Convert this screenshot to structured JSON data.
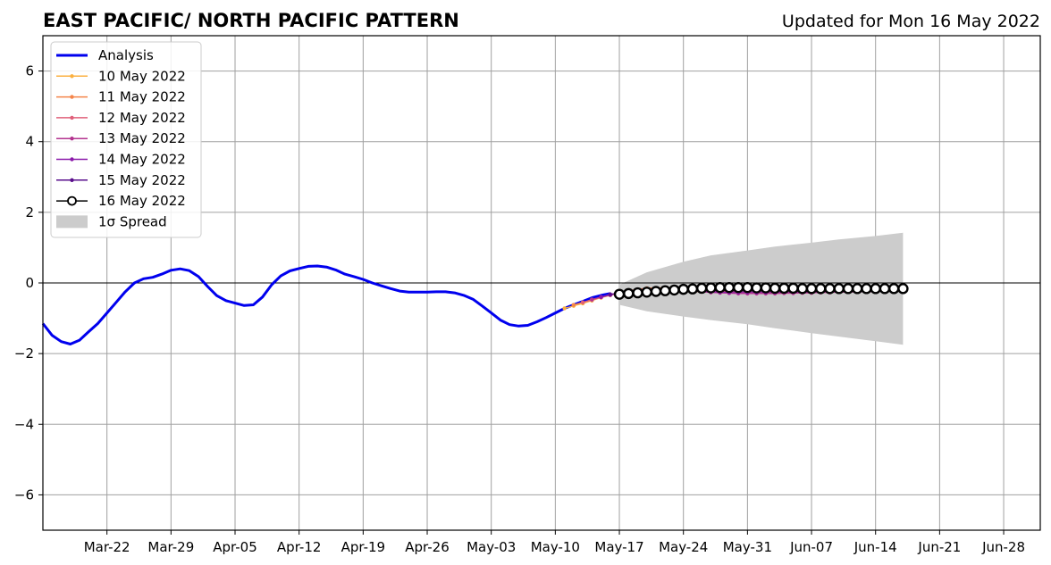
{
  "chart_data": {
    "type": "line",
    "title": "EAST PACIFIC/ NORTH PACIFIC PATTERN",
    "subtitle": "Updated for Mon 16 May 2022",
    "xlabel": "",
    "ylabel": "",
    "xlim": [
      "2022-03-15",
      "2022-07-02"
    ],
    "ylim": [
      -7,
      7
    ],
    "grid": true,
    "legend_position": "top-left",
    "x_ticks": [
      "Mar-22",
      "Mar-29",
      "Apr-05",
      "Apr-12",
      "Apr-19",
      "Apr-26",
      "May-03",
      "May-10",
      "May-17",
      "May-24",
      "May-31",
      "Jun-07",
      "Jun-14",
      "Jun-21",
      "Jun-28"
    ],
    "y_ticks": [
      "6",
      "4",
      "2",
      "0",
      "−2",
      "−4",
      "−6"
    ],
    "series": [
      {
        "name": "Analysis",
        "color": "#0000ee",
        "x": [
          "2022-03-15",
          "2022-03-16",
          "2022-03-17",
          "2022-03-18",
          "2022-03-19",
          "2022-03-20",
          "2022-03-21",
          "2022-03-22",
          "2022-03-23",
          "2022-03-24",
          "2022-03-25",
          "2022-03-26",
          "2022-03-27",
          "2022-03-28",
          "2022-03-29",
          "2022-03-30",
          "2022-03-31",
          "2022-04-01",
          "2022-04-02",
          "2022-04-03",
          "2022-04-04",
          "2022-04-05",
          "2022-04-06",
          "2022-04-07",
          "2022-04-08",
          "2022-04-09",
          "2022-04-10",
          "2022-04-11",
          "2022-04-12",
          "2022-04-13",
          "2022-04-14",
          "2022-04-15",
          "2022-04-16",
          "2022-04-17",
          "2022-04-18",
          "2022-04-19",
          "2022-04-20",
          "2022-04-21",
          "2022-04-22",
          "2022-04-23",
          "2022-04-24",
          "2022-04-25",
          "2022-04-26",
          "2022-04-27",
          "2022-04-28",
          "2022-04-29",
          "2022-04-30",
          "2022-05-01",
          "2022-05-02",
          "2022-05-03",
          "2022-05-04",
          "2022-05-05",
          "2022-05-06",
          "2022-05-07",
          "2022-05-08",
          "2022-05-09",
          "2022-05-10",
          "2022-05-11",
          "2022-05-12",
          "2022-05-13",
          "2022-05-14",
          "2022-05-15",
          "2022-05-16"
        ],
        "values": [
          -1.15,
          -1.48,
          -1.66,
          -1.73,
          -1.62,
          -1.38,
          -1.15,
          -0.85,
          -0.55,
          -0.25,
          0.0,
          0.12,
          0.16,
          0.25,
          0.36,
          0.4,
          0.35,
          0.18,
          -0.1,
          -0.36,
          -0.5,
          -0.57,
          -0.64,
          -0.62,
          -0.4,
          -0.05,
          0.2,
          0.34,
          0.41,
          0.47,
          0.48,
          0.45,
          0.37,
          0.25,
          0.18,
          0.1,
          0.0,
          -0.08,
          -0.16,
          -0.23,
          -0.26,
          -0.26,
          -0.26,
          -0.25,
          -0.25,
          -0.28,
          -0.35,
          -0.46,
          -0.65,
          -0.85,
          -1.05,
          -1.18,
          -1.22,
          -1.2,
          -1.1,
          -0.98,
          -0.85,
          -0.72,
          -0.62,
          -0.52,
          -0.42,
          -0.35,
          -0.3
        ]
      },
      {
        "name": "10 May 2022",
        "color": "#fbb040",
        "x": [
          "2022-05-11",
          "2022-05-12",
          "2022-05-13",
          "2022-05-14",
          "2022-05-15",
          "2022-05-16",
          "2022-05-17",
          "2022-05-18",
          "2022-05-19",
          "2022-05-20",
          "2022-05-21",
          "2022-05-22",
          "2022-05-23",
          "2022-05-24",
          "2022-05-25",
          "2022-05-26",
          "2022-05-27",
          "2022-05-28",
          "2022-05-29",
          "2022-05-30",
          "2022-05-31",
          "2022-06-01",
          "2022-06-02",
          "2022-06-03",
          "2022-06-04",
          "2022-06-05",
          "2022-06-06",
          "2022-06-07",
          "2022-06-08",
          "2022-06-09",
          "2022-06-10",
          "2022-06-11",
          "2022-06-12",
          "2022-06-13",
          "2022-06-14",
          "2022-06-15",
          "2022-06-16",
          "2022-06-17"
        ],
        "values": [
          -0.72,
          -0.65,
          -0.58,
          -0.5,
          -0.42,
          -0.35,
          -0.3,
          -0.26,
          -0.22,
          -0.2,
          -0.19,
          -0.19,
          -0.2,
          -0.22,
          -0.24,
          -0.25,
          -0.26,
          -0.27,
          -0.28,
          -0.28,
          -0.28,
          -0.28,
          -0.28,
          -0.28,
          -0.27,
          -0.27,
          -0.26,
          -0.26,
          -0.25,
          -0.25,
          -0.24,
          -0.23,
          -0.22,
          -0.22,
          -0.21,
          -0.2,
          -0.2,
          -0.19
        ]
      },
      {
        "name": "11 May 2022",
        "color": "#f5854a",
        "x": [
          "2022-05-12",
          "2022-05-13",
          "2022-05-14",
          "2022-05-15",
          "2022-05-16",
          "2022-05-17",
          "2022-05-18",
          "2022-05-19",
          "2022-05-20",
          "2022-05-21",
          "2022-05-22",
          "2022-05-23",
          "2022-05-24",
          "2022-05-25",
          "2022-05-26",
          "2022-05-27",
          "2022-05-28",
          "2022-05-29",
          "2022-05-30",
          "2022-05-31",
          "2022-06-01",
          "2022-06-02",
          "2022-06-03",
          "2022-06-04",
          "2022-06-05",
          "2022-06-06",
          "2022-06-07",
          "2022-06-08",
          "2022-06-09",
          "2022-06-10",
          "2022-06-11",
          "2022-06-12",
          "2022-06-13",
          "2022-06-14",
          "2022-06-15",
          "2022-06-16",
          "2022-06-17"
        ],
        "values": [
          -0.62,
          -0.55,
          -0.47,
          -0.4,
          -0.33,
          -0.27,
          -0.22,
          -0.18,
          -0.15,
          -0.14,
          -0.14,
          -0.15,
          -0.17,
          -0.19,
          -0.21,
          -0.23,
          -0.24,
          -0.25,
          -0.26,
          -0.26,
          -0.26,
          -0.26,
          -0.25,
          -0.25,
          -0.24,
          -0.24,
          -0.23,
          -0.23,
          -0.22,
          -0.22,
          -0.21,
          -0.21,
          -0.2,
          -0.2,
          -0.19,
          -0.19,
          -0.18
        ]
      },
      {
        "name": "12 May 2022",
        "color": "#e0607a",
        "x": [
          "2022-05-13",
          "2022-05-14",
          "2022-05-15",
          "2022-05-16",
          "2022-05-17",
          "2022-05-18",
          "2022-05-19",
          "2022-05-20",
          "2022-05-21",
          "2022-05-22",
          "2022-05-23",
          "2022-05-24",
          "2022-05-25",
          "2022-05-26",
          "2022-05-27",
          "2022-05-28",
          "2022-05-29",
          "2022-05-30",
          "2022-05-31",
          "2022-06-01",
          "2022-06-02",
          "2022-06-03",
          "2022-06-04",
          "2022-06-05",
          "2022-06-06",
          "2022-06-07",
          "2022-06-08",
          "2022-06-09",
          "2022-06-10",
          "2022-06-11",
          "2022-06-12",
          "2022-06-13",
          "2022-06-14",
          "2022-06-15",
          "2022-06-16",
          "2022-06-17"
        ],
        "values": [
          -0.55,
          -0.48,
          -0.41,
          -0.34,
          -0.28,
          -0.23,
          -0.19,
          -0.17,
          -0.16,
          -0.16,
          -0.17,
          -0.19,
          -0.21,
          -0.23,
          -0.25,
          -0.27,
          -0.28,
          -0.29,
          -0.3,
          -0.3,
          -0.3,
          -0.3,
          -0.29,
          -0.29,
          -0.28,
          -0.28,
          -0.27,
          -0.27,
          -0.26,
          -0.26,
          -0.25,
          -0.25,
          -0.24,
          -0.23,
          -0.23,
          -0.22
        ]
      },
      {
        "name": "13 May 2022",
        "color": "#b3338f",
        "x": [
          "2022-05-14",
          "2022-05-15",
          "2022-05-16",
          "2022-05-17",
          "2022-05-18",
          "2022-05-19",
          "2022-05-20",
          "2022-05-21",
          "2022-05-22",
          "2022-05-23",
          "2022-05-24",
          "2022-05-25",
          "2022-05-26",
          "2022-05-27",
          "2022-05-28",
          "2022-05-29",
          "2022-05-30",
          "2022-05-31",
          "2022-06-01",
          "2022-06-02",
          "2022-06-03",
          "2022-06-04",
          "2022-06-05",
          "2022-06-06",
          "2022-06-07",
          "2022-06-08",
          "2022-06-09",
          "2022-06-10",
          "2022-06-11",
          "2022-06-12",
          "2022-06-13",
          "2022-06-14",
          "2022-06-15",
          "2022-06-16",
          "2022-06-17"
        ],
        "values": [
          -0.47,
          -0.4,
          -0.34,
          -0.28,
          -0.23,
          -0.2,
          -0.18,
          -0.17,
          -0.18,
          -0.19,
          -0.21,
          -0.23,
          -0.25,
          -0.27,
          -0.28,
          -0.29,
          -0.3,
          -0.3,
          -0.3,
          -0.3,
          -0.3,
          -0.29,
          -0.29,
          -0.28,
          -0.28,
          -0.27,
          -0.27,
          -0.26,
          -0.26,
          -0.25,
          -0.25,
          -0.24,
          -0.24,
          -0.23,
          -0.23
        ]
      },
      {
        "name": "14 May 2022",
        "color": "#8b1aaa",
        "x": [
          "2022-05-15",
          "2022-05-16",
          "2022-05-17",
          "2022-05-18",
          "2022-05-19",
          "2022-05-20",
          "2022-05-21",
          "2022-05-22",
          "2022-05-23",
          "2022-05-24",
          "2022-05-25",
          "2022-05-26",
          "2022-05-27",
          "2022-05-28",
          "2022-05-29",
          "2022-05-30",
          "2022-05-31",
          "2022-06-01",
          "2022-06-02",
          "2022-06-03",
          "2022-06-04",
          "2022-06-05",
          "2022-06-06",
          "2022-06-07",
          "2022-06-08",
          "2022-06-09",
          "2022-06-10",
          "2022-06-11",
          "2022-06-12",
          "2022-06-13",
          "2022-06-14",
          "2022-06-15",
          "2022-06-16",
          "2022-06-17"
        ],
        "values": [
          -0.4,
          -0.34,
          -0.29,
          -0.25,
          -0.22,
          -0.2,
          -0.19,
          -0.19,
          -0.2,
          -0.21,
          -0.23,
          -0.24,
          -0.25,
          -0.26,
          -0.27,
          -0.27,
          -0.27,
          -0.27,
          -0.27,
          -0.27,
          -0.26,
          -0.26,
          -0.26,
          -0.25,
          -0.25,
          -0.24,
          -0.24,
          -0.23,
          -0.23,
          -0.22,
          -0.22,
          -0.21,
          -0.21,
          -0.2
        ]
      },
      {
        "name": "15 May 2022",
        "color": "#5a0f8c",
        "x": [
          "2022-05-16",
          "2022-05-17",
          "2022-05-18",
          "2022-05-19",
          "2022-05-20",
          "2022-05-21",
          "2022-05-22",
          "2022-05-23",
          "2022-05-24",
          "2022-05-25",
          "2022-05-26",
          "2022-05-27",
          "2022-05-28",
          "2022-05-29",
          "2022-05-30",
          "2022-05-31",
          "2022-06-01",
          "2022-06-02",
          "2022-06-03",
          "2022-06-04",
          "2022-06-05",
          "2022-06-06",
          "2022-06-07",
          "2022-06-08",
          "2022-06-09",
          "2022-06-10",
          "2022-06-11",
          "2022-06-12",
          "2022-06-13",
          "2022-06-14",
          "2022-06-15",
          "2022-06-16",
          "2022-06-17"
        ],
        "values": [
          -0.32,
          -0.28,
          -0.24,
          -0.21,
          -0.19,
          -0.18,
          -0.18,
          -0.18,
          -0.19,
          -0.2,
          -0.21,
          -0.22,
          -0.22,
          -0.23,
          -0.23,
          -0.23,
          -0.23,
          -0.23,
          -0.23,
          -0.22,
          -0.22,
          -0.22,
          -0.21,
          -0.21,
          -0.21,
          -0.2,
          -0.2,
          -0.2,
          -0.19,
          -0.19,
          -0.19,
          -0.18,
          -0.18
        ]
      },
      {
        "name": "16 May 2022",
        "color": "#000000",
        "x": [
          "2022-05-17",
          "2022-05-18",
          "2022-05-19",
          "2022-05-20",
          "2022-05-21",
          "2022-05-22",
          "2022-05-23",
          "2022-05-24",
          "2022-05-25",
          "2022-05-26",
          "2022-05-27",
          "2022-05-28",
          "2022-05-29",
          "2022-05-30",
          "2022-05-31",
          "2022-06-01",
          "2022-06-02",
          "2022-06-03",
          "2022-06-04",
          "2022-06-05",
          "2022-06-06",
          "2022-06-07",
          "2022-06-08",
          "2022-06-09",
          "2022-06-10",
          "2022-06-11",
          "2022-06-12",
          "2022-06-13",
          "2022-06-14",
          "2022-06-15",
          "2022-06-16",
          "2022-06-17"
        ],
        "values": [
          -0.32,
          -0.3,
          -0.28,
          -0.26,
          -0.24,
          -0.22,
          -0.2,
          -0.18,
          -0.17,
          -0.15,
          -0.14,
          -0.13,
          -0.13,
          -0.13,
          -0.13,
          -0.14,
          -0.14,
          -0.15,
          -0.15,
          -0.15,
          -0.16,
          -0.16,
          -0.16,
          -0.16,
          -0.16,
          -0.16,
          -0.16,
          -0.16,
          -0.16,
          -0.16,
          -0.16,
          -0.16
        ]
      }
    ],
    "spread": {
      "name": "1σ Spread",
      "color": "#cccccc",
      "x": [
        "2022-05-17",
        "2022-05-20",
        "2022-05-24",
        "2022-05-27",
        "2022-05-31",
        "2022-06-03",
        "2022-06-07",
        "2022-06-10",
        "2022-06-14",
        "2022-06-17"
      ],
      "upper": [
        -0.05,
        0.3,
        0.6,
        0.78,
        0.92,
        1.03,
        1.14,
        1.23,
        1.33,
        1.42
      ],
      "lower": [
        -0.62,
        -0.8,
        -0.95,
        -1.05,
        -1.17,
        -1.28,
        -1.42,
        -1.52,
        -1.65,
        -1.75
      ]
    }
  }
}
